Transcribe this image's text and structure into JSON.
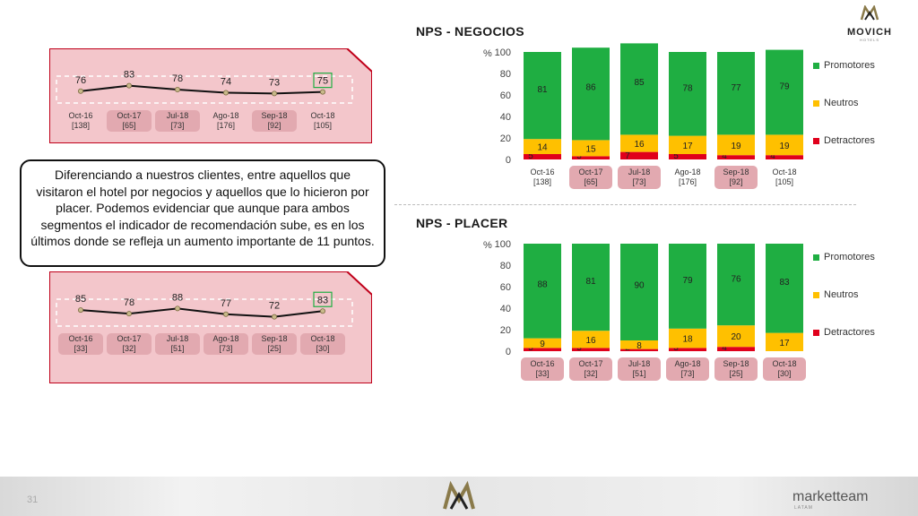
{
  "slide": {
    "callout_text": "Diferenciando a nuestros clientes, entre aquellos que visitaron el hotel por negocios y aquellos que lo hicieron por placer. Podemos evidenciar que aunque para ambos segmentos el indicador de recomendación sube, es en los últimos donde se refleja un aumento importante de 11 puntos.",
    "logo_name": "MOVICH",
    "logo_sub": "HOTELS",
    "footer_page": "31",
    "footer_brand": "marketteam",
    "footer_brand_sub": "LATAM"
  },
  "colors": {
    "promotores": "#1fae42",
    "neutros": "#ffc000",
    "detractores": "#e0001b",
    "highlight_bg": "#f3c6cb",
    "highlight_border": "#c0001a",
    "label_highlight": "#e2a9b0",
    "line_marker": "#c8b98a"
  },
  "chart_data": [
    {
      "type": "bar",
      "stacked": true,
      "title": "NPS - NEGOCIOS",
      "categories": [
        "Oct-16",
        "Oct-17",
        "Jul-18",
        "Ago-18",
        "Sep-18",
        "Oct-18"
      ],
      "counts": [
        "[138]",
        "[65]",
        "[73]",
        "[176]",
        "[92]",
        "[105]"
      ],
      "highlighted": [
        false,
        true,
        true,
        false,
        true,
        false
      ],
      "ylabel": "%",
      "ylim": [
        0,
        100
      ],
      "yticks": [
        0,
        20,
        40,
        60,
        80,
        100
      ],
      "series": [
        {
          "name": "Detractores",
          "values": [
            5,
            3,
            7,
            5,
            4,
            4
          ]
        },
        {
          "name": "Neutros",
          "values": [
            14,
            15,
            16,
            17,
            19,
            19
          ]
        },
        {
          "name": "Promotores",
          "values": [
            81,
            86,
            85,
            78,
            77,
            79
          ]
        }
      ],
      "legend_placement": "right"
    },
    {
      "type": "bar",
      "stacked": true,
      "title": "NPS - PLACER",
      "categories": [
        "Oct-16",
        "Oct-17",
        "Jul-18",
        "Ago-18",
        "Sep-18",
        "Oct-18"
      ],
      "counts": [
        "[33]",
        "[32]",
        "[51]",
        "[73]",
        "[25]",
        "[30]"
      ],
      "highlighted": [
        true,
        true,
        true,
        true,
        true,
        true
      ],
      "ylabel": "%",
      "ylim": [
        0,
        100
      ],
      "yticks": [
        0,
        20,
        40,
        60,
        80,
        100
      ],
      "series": [
        {
          "name": "Detractores",
          "values": [
            3,
            3,
            2,
            3,
            4,
            0
          ]
        },
        {
          "name": "Neutros",
          "values": [
            9,
            16,
            8,
            18,
            20,
            17
          ]
        },
        {
          "name": "Promotores",
          "values": [
            88,
            81,
            90,
            79,
            76,
            83
          ]
        }
      ],
      "legend_placement": "right"
    },
    {
      "type": "line",
      "title": "",
      "categories": [
        "Oct-16",
        "Oct-17",
        "Jul-18",
        "Ago-18",
        "Sep-18",
        "Oct-18"
      ],
      "counts": [
        "[138]",
        "[65]",
        "[73]",
        "[176]",
        "[92]",
        "[105]"
      ],
      "highlighted": [
        false,
        true,
        true,
        false,
        true,
        false
      ],
      "values": [
        76,
        83,
        78,
        74,
        73,
        75
      ],
      "boxed_last": true
    },
    {
      "type": "line",
      "title": "",
      "categories": [
        "Oct-16",
        "Oct-17",
        "Jul-18",
        "Ago-18",
        "Sep-18",
        "Oct-18"
      ],
      "counts": [
        "[33]",
        "[32]",
        "[51]",
        "[73]",
        "[25]",
        "[30]"
      ],
      "highlighted": [
        true,
        true,
        true,
        true,
        true,
        true
      ],
      "values": [
        85,
        78,
        88,
        77,
        72,
        83
      ],
      "boxed_last": true
    }
  ]
}
